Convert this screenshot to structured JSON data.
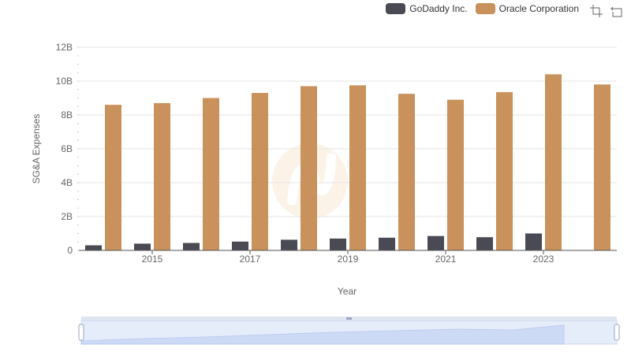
{
  "legend": {
    "items": [
      {
        "label": "GoDaddy Inc.",
        "color": "#4a4a55"
      },
      {
        "label": "Oracle Corporation",
        "color": "#c9915c"
      }
    ]
  },
  "toolbox": {
    "icons": [
      "zoom-icon",
      "restore-icon"
    ]
  },
  "chart_data": {
    "type": "bar",
    "title": "",
    "xlabel": "Year",
    "ylabel": "SG&A Expenses",
    "categories": [
      "2014",
      "2015",
      "2016",
      "2017",
      "2018",
      "2019",
      "2020",
      "2021",
      "2022",
      "2023",
      "2024"
    ],
    "x_tick_labels": [
      "2015",
      "2017",
      "2019",
      "2021",
      "2023"
    ],
    "series": [
      {
        "name": "GoDaddy Inc.",
        "color": "#4a4a55",
        "values": [
          0.3,
          0.4,
          0.44,
          0.52,
          0.63,
          0.7,
          0.75,
          0.85,
          0.78,
          1.0,
          null
        ]
      },
      {
        "name": "Oracle Corporation",
        "color": "#c9915c",
        "values": [
          8.6,
          8.7,
          9.0,
          9.3,
          9.7,
          9.75,
          9.25,
          8.9,
          9.35,
          10.4,
          9.8
        ]
      }
    ],
    "ylim": [
      0,
      12
    ],
    "y_ticks": [
      0,
      2,
      4,
      6,
      8,
      10,
      12
    ],
    "y_tick_labels": [
      "0",
      "2B",
      "4B",
      "6B",
      "8B",
      "10B",
      "12B"
    ],
    "grid": true,
    "legend_position": "top-right",
    "data_zoom": {
      "start": 0,
      "end": 100
    }
  }
}
